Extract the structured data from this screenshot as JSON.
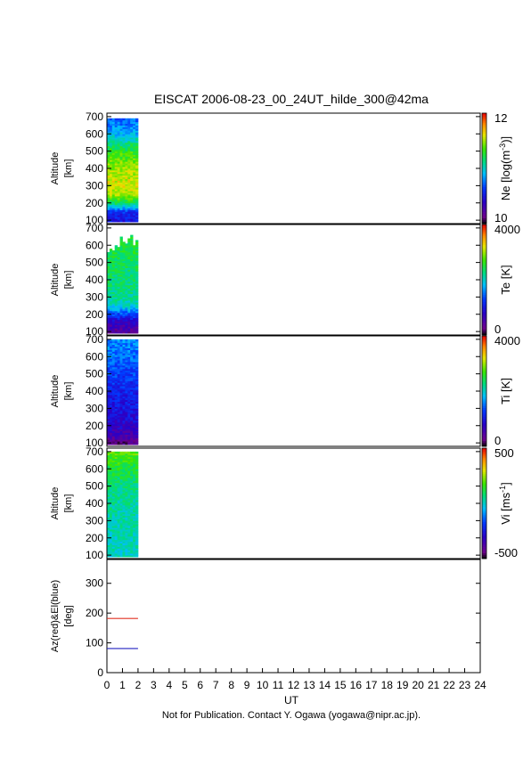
{
  "title": "EISCAT 2006-08-23_00_24UT_hilde_300@42ma",
  "footer": "Not for Publication. Contact Y. Ogawa (yogawa@nipr.ac.jp).",
  "chart_data": {
    "type": "heatmap",
    "x_axis": {
      "label": "UT",
      "range": [
        0,
        24
      ],
      "ticks": [
        "0",
        "1",
        "2",
        "3",
        "4",
        "5",
        "6",
        "7",
        "8",
        "9",
        "10",
        "11",
        "12",
        "13",
        "14",
        "15",
        "16",
        "17",
        "18",
        "19",
        "20",
        "21",
        "22",
        "23",
        "24"
      ]
    },
    "data_time_range_ut": [
      0,
      2
    ],
    "panels": [
      {
        "ylabel": [
          "Altitude",
          "[km]"
        ],
        "ylim": [
          80,
          720
        ],
        "yticks": [
          100,
          200,
          300,
          400,
          500,
          600,
          700
        ],
        "colorbar": {
          "label": "Ne [log(m-3)]",
          "label_main": "Ne [log(m",
          "label_sup": "-3",
          "label_end": ")]",
          "min_label": "10",
          "max_label": "12",
          "min": 10,
          "max": 12
        },
        "profile_altitudes_km": [
          100,
          150,
          200,
          250,
          300,
          400,
          500,
          600,
          700
        ],
        "profile_values": [
          10.5,
          10.6,
          11.2,
          11.5,
          11.6,
          11.5,
          11.3,
          10.9,
          10.7
        ],
        "data_top_km": [
          690,
          690,
          690,
          690,
          690,
          690,
          690,
          690,
          690,
          690,
          690,
          690
        ]
      },
      {
        "ylabel": [
          "Altitude",
          "[km]"
        ],
        "ylim": [
          80,
          720
        ],
        "yticks": [
          100,
          200,
          300,
          400,
          500,
          600,
          700
        ],
        "colorbar": {
          "label": "Te [K]",
          "label_main": "Te [K]",
          "label_sup": "",
          "label_end": "",
          "min_label": "0",
          "max_label": "4000",
          "min": 0,
          "max": 4000
        },
        "profile_altitudes_km": [
          100,
          150,
          200,
          250,
          300,
          400,
          500,
          600,
          700
        ],
        "profile_values": [
          400,
          700,
          1300,
          2000,
          2200,
          2300,
          2400,
          2500,
          2500
        ],
        "data_top_km": [
          560,
          580,
          570,
          600,
          590,
          650,
          620,
          610,
          640,
          660,
          600,
          630
        ]
      },
      {
        "ylabel": [
          "Altitude",
          "[km]"
        ],
        "ylim": [
          80,
          720
        ],
        "yticks": [
          100,
          200,
          300,
          400,
          500,
          600,
          700
        ],
        "colorbar": {
          "label": "Ti [K]",
          "label_main": "Ti [K]",
          "label_sup": "",
          "label_end": "",
          "min_label": "0",
          "max_label": "4000",
          "min": 0,
          "max": 4000
        },
        "profile_altitudes_km": [
          100,
          150,
          200,
          250,
          300,
          400,
          500,
          600,
          700
        ],
        "profile_values": [
          250,
          600,
          800,
          900,
          1000,
          1100,
          1300,
          1500,
          1600
        ],
        "data_top_km": [
          700,
          700,
          700,
          700,
          700,
          700,
          700,
          700,
          700,
          700,
          700,
          700
        ]
      },
      {
        "ylabel": [
          "Altitude",
          "[km]"
        ],
        "ylim": [
          80,
          720
        ],
        "yticks": [
          100,
          200,
          300,
          400,
          500,
          600,
          700
        ],
        "colorbar": {
          "label": "Vi [ms-1]",
          "label_main": "Vi [ms",
          "label_sup": "-1",
          "label_end": "]",
          "min_label": "-500",
          "max_label": "500",
          "min": -500,
          "max": 500
        },
        "profile_altitudes_km": [
          100,
          150,
          200,
          250,
          300,
          400,
          500,
          600,
          700
        ],
        "profile_values": [
          0,
          10,
          15,
          20,
          25,
          40,
          70,
          120,
          200
        ],
        "data_top_km": [
          700,
          700,
          700,
          700,
          700,
          700,
          700,
          700,
          700,
          700,
          700,
          700
        ]
      }
    ],
    "angle_panel": {
      "ylabel": [
        "Az(red)&El(blue)",
        "[deg]"
      ],
      "ylim": [
        0,
        380
      ],
      "yticks": [
        0,
        100,
        200,
        300
      ],
      "series": [
        {
          "color": "#e03020",
          "value": 182,
          "x_range": [
            0,
            2
          ]
        },
        {
          "color": "#2020c0",
          "value": 81,
          "x_range": [
            0,
            2
          ]
        }
      ]
    }
  }
}
